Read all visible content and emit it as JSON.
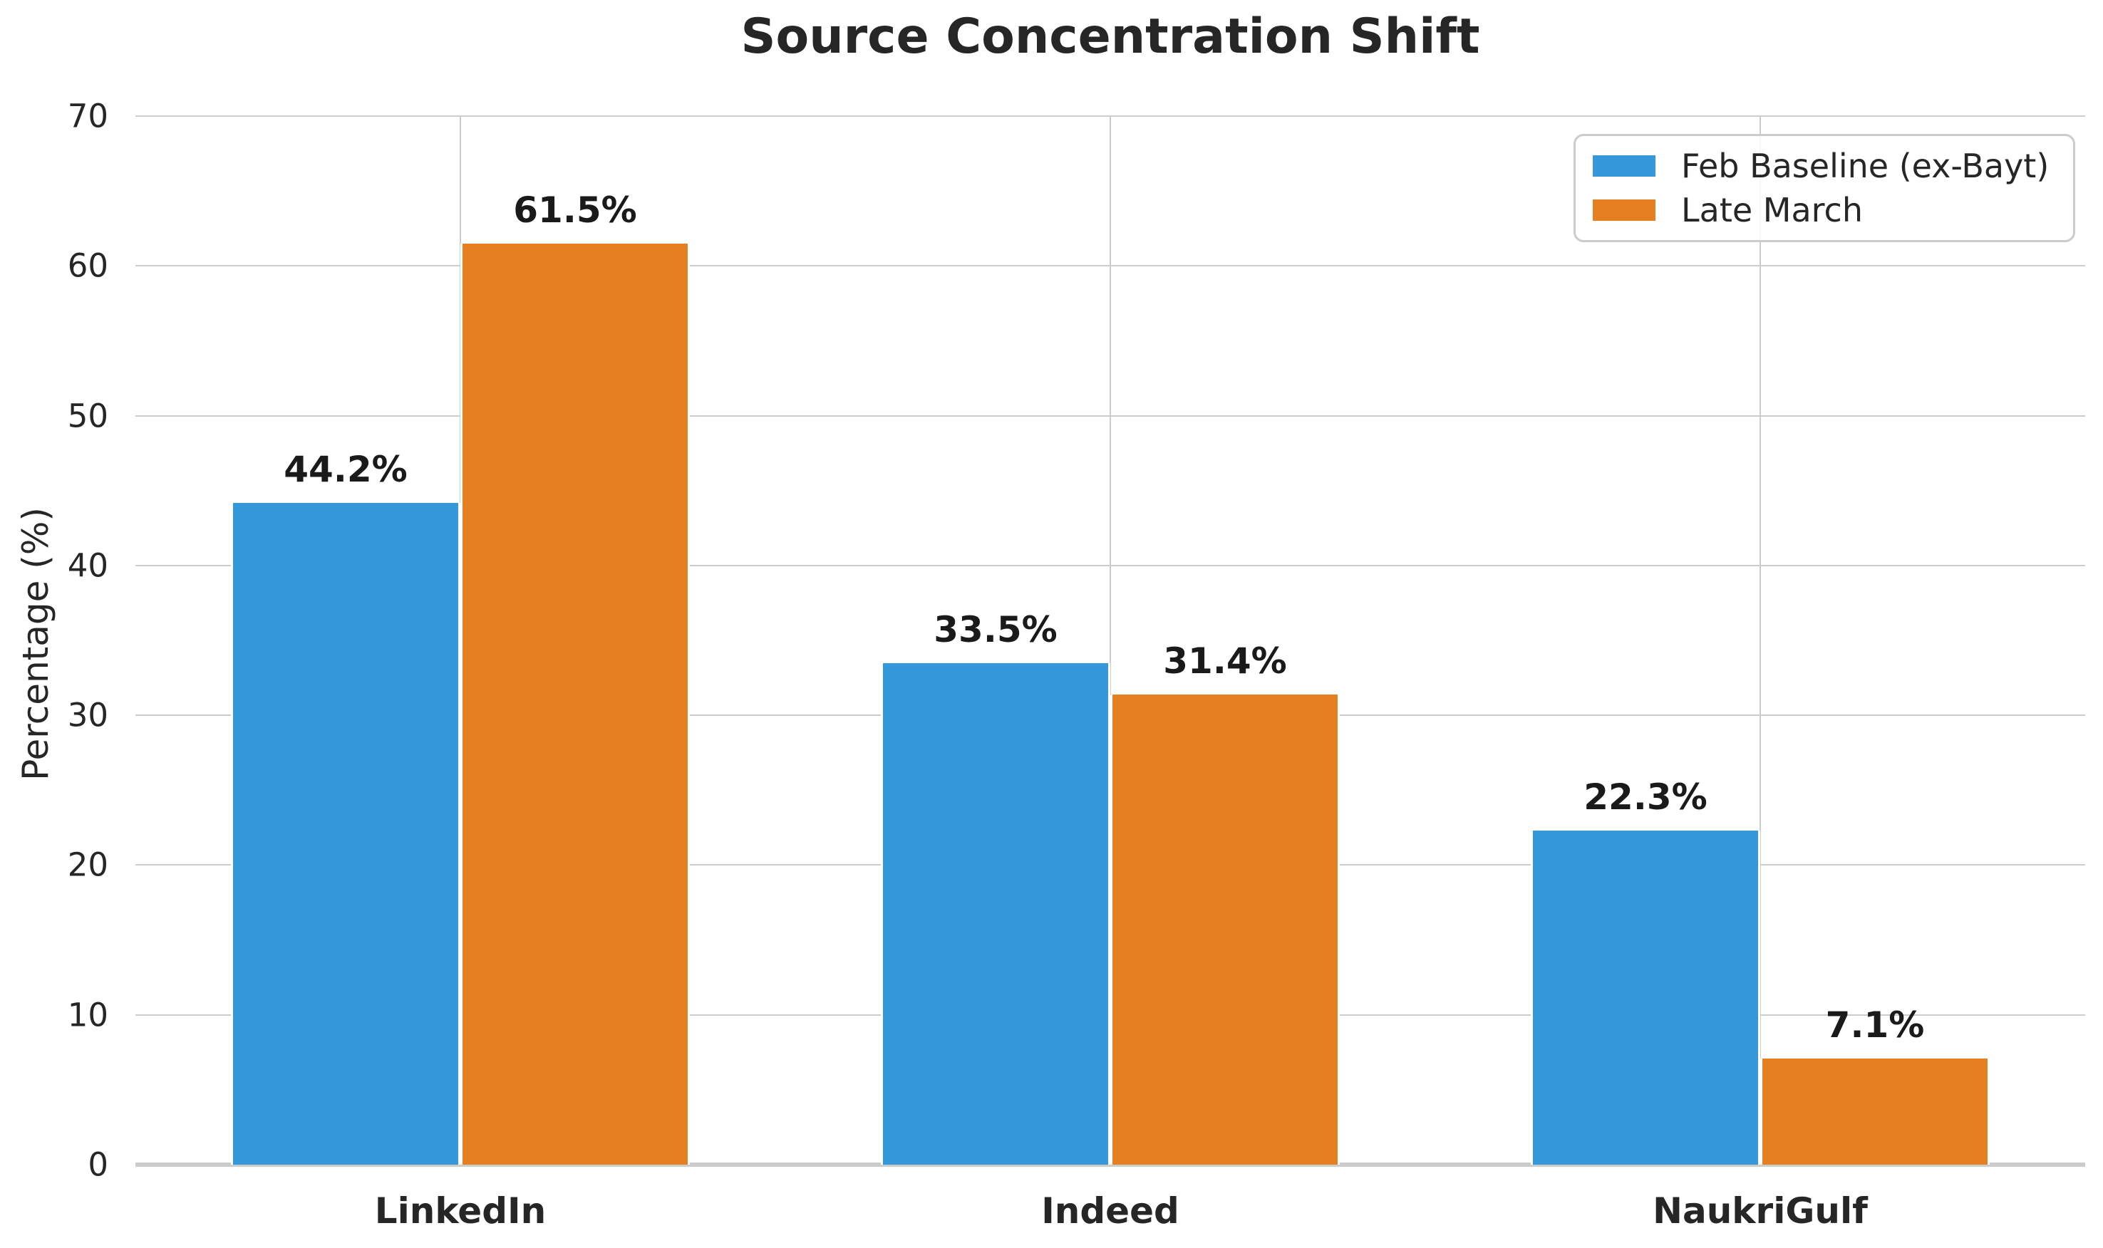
{
  "title": "Source Concentration Shift",
  "ylabel": "Percentage (%)",
  "colors": {
    "series_blue": "#3498db",
    "series_orange": "#e67e22",
    "grid": "#cccccc",
    "text": "#262626",
    "value_label": "#1a1a1a",
    "background": "#ffffff"
  },
  "chart_data": {
    "type": "bar",
    "title": "Source Concentration Shift",
    "xlabel": "",
    "ylabel": "Percentage (%)",
    "categories": [
      "LinkedIn",
      "Indeed",
      "NaukriGulf"
    ],
    "series": [
      {
        "name": "Feb Baseline (ex-Bayt)",
        "color": "#3498db",
        "values": [
          44.2,
          33.5,
          22.3
        ],
        "labels": [
          "44.2%",
          "33.5%",
          "22.3%"
        ]
      },
      {
        "name": "Late March",
        "color": "#e67e22",
        "values": [
          61.5,
          31.4,
          7.1
        ],
        "labels": [
          "61.5%",
          "31.4%",
          "7.1%"
        ]
      }
    ],
    "ylim": [
      0,
      70
    ],
    "yticks": [
      0,
      10,
      20,
      30,
      40,
      50,
      60,
      70
    ],
    "grid": "on",
    "grid_axes": "both",
    "legend_position": "upper right",
    "bar_group_width_fraction": 0.7
  }
}
